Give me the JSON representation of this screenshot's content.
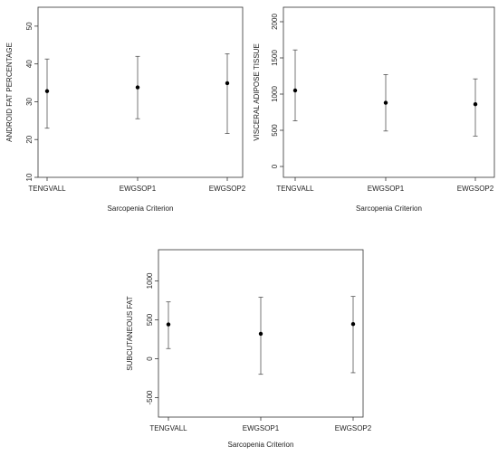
{
  "chart_data": [
    {
      "type": "scatter",
      "error_bars": true,
      "categories": [
        "TENGVALL",
        "EWGSOP1",
        "EWGSOP2"
      ],
      "values": [
        32.8,
        33.8,
        34.9
      ],
      "lower": [
        23.0,
        25.5,
        21.6
      ],
      "upper": [
        41.3,
        42.0,
        42.7
      ],
      "xlabel": "Sarcopenia Criterion",
      "ylabel": "ANDROID FAT PERCENTAGE",
      "ylim": [
        10,
        55
      ],
      "yticks": [
        10,
        20,
        30,
        40,
        50
      ],
      "grid": false
    },
    {
      "type": "scatter",
      "error_bars": true,
      "categories": [
        "TENGVALL",
        "EWGSOP1",
        "EWGSOP2"
      ],
      "values": [
        1050,
        880,
        860
      ],
      "lower": [
        630,
        490,
        420
      ],
      "upper": [
        1610,
        1270,
        1210
      ],
      "xlabel": "Sarcopenia Criterion",
      "ylabel": "VISCERAL ADIPOSE TISSUE",
      "ylim": [
        -150,
        2200
      ],
      "yticks": [
        0,
        500,
        1000,
        1500,
        2000
      ],
      "grid": false
    },
    {
      "type": "scatter",
      "error_bars": true,
      "categories": [
        "TENGVALL",
        "EWGSOP1",
        "EWGSOP2"
      ],
      "values": [
        440,
        320,
        445
      ],
      "lower": [
        130,
        -200,
        -180
      ],
      "upper": [
        730,
        790,
        800
      ],
      "xlabel": "Sarcopenia Criterion",
      "ylabel": "SUBCUTANEOUS FAT",
      "ylim": [
        -750,
        1400
      ],
      "yticks": [
        -500,
        0,
        500,
        1000
      ],
      "grid": false
    }
  ]
}
